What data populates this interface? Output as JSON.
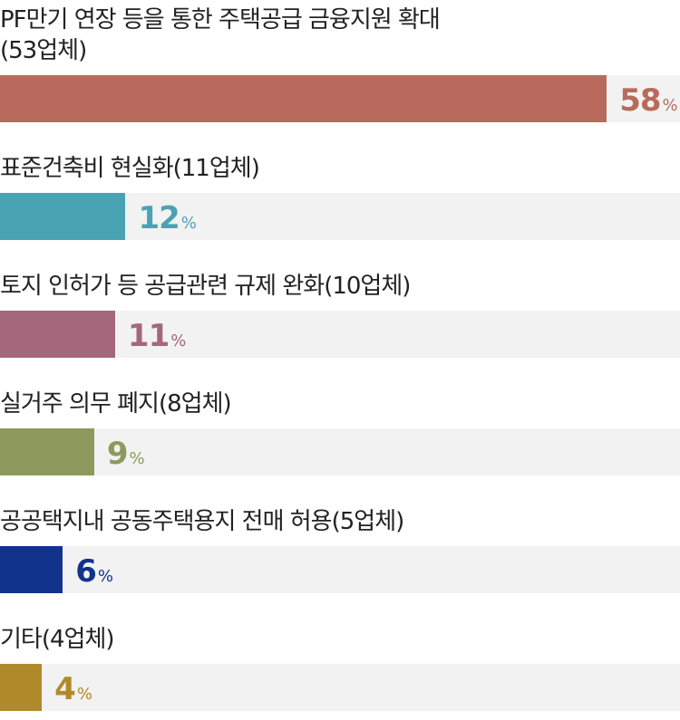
{
  "chart_data": {
    "type": "bar",
    "orientation": "horizontal",
    "categories": [
      [
        "PF만기 연장 등을 통한 주택공급 금융지원 확대",
        "(53업체)"
      ],
      [
        "표준건축비 현실화(11업체)"
      ],
      [
        "토지 인허가 등 공급관련 규제 완화(10업체)"
      ],
      [
        "실거주 의무 폐지(8업체)"
      ],
      [
        "공공택지내 공동주택용지 전매 허용(5업체)"
      ],
      [
        "기타(4업체)"
      ]
    ],
    "values": [
      58,
      12,
      11,
      9,
      6,
      4
    ],
    "value_labels": [
      "58%",
      "12%",
      "11%",
      "9%",
      "6%",
      "4%"
    ],
    "colors": [
      "#b86b5d",
      "#4aa3b3",
      "#a5677b",
      "#8c9a5e",
      "#12338c",
      "#b08a2a"
    ],
    "track_color": "#f2f2f2",
    "xlim": [
      0,
      65
    ]
  }
}
